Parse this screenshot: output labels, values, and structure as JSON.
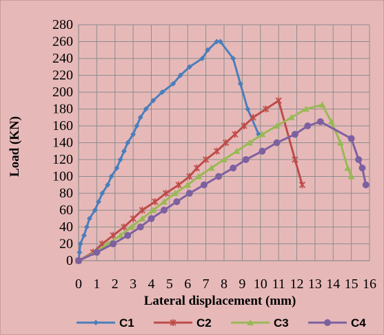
{
  "chart_data": {
    "type": "line",
    "title": "",
    "xlabel": "Lateral displacement (mm)",
    "ylabel": "Load (KN)",
    "xlim": [
      0,
      16
    ],
    "ylim": [
      0,
      280
    ],
    "x_ticks": [
      0,
      1,
      2,
      3,
      4,
      5,
      6,
      7,
      8,
      9,
      10,
      11,
      12,
      13,
      14,
      15,
      16
    ],
    "y_ticks": [
      0,
      20,
      40,
      60,
      80,
      100,
      120,
      140,
      160,
      180,
      200,
      220,
      240,
      260,
      280
    ],
    "grid": "vertical and horizontal major gridlines",
    "legend_position": "bottom",
    "series": [
      {
        "name": "C1",
        "color": "#4a7ebb",
        "marker": "diamond",
        "points": [
          [
            0,
            0
          ],
          [
            0.05,
            10
          ],
          [
            0.1,
            20
          ],
          [
            0.3,
            30
          ],
          [
            0.45,
            40
          ],
          [
            0.6,
            50
          ],
          [
            0.9,
            60
          ],
          [
            1.1,
            70
          ],
          [
            1.3,
            80
          ],
          [
            1.6,
            90
          ],
          [
            1.8,
            100
          ],
          [
            2.1,
            110
          ],
          [
            2.3,
            120
          ],
          [
            2.5,
            130
          ],
          [
            2.7,
            140
          ],
          [
            3.0,
            150
          ],
          [
            3.2,
            160
          ],
          [
            3.4,
            170
          ],
          [
            3.7,
            180
          ],
          [
            4.1,
            190
          ],
          [
            4.6,
            200
          ],
          [
            5.2,
            210
          ],
          [
            5.6,
            220
          ],
          [
            6.1,
            230
          ],
          [
            6.8,
            240
          ],
          [
            7.1,
            250
          ],
          [
            7.6,
            260
          ],
          [
            7.8,
            260
          ],
          [
            8.5,
            240
          ],
          [
            8.9,
            210
          ],
          [
            9.3,
            180
          ],
          [
            9.9,
            150
          ]
        ]
      },
      {
        "name": "C2",
        "color": "#be4b48",
        "marker": "star",
        "points": [
          [
            0,
            0
          ],
          [
            0.8,
            10
          ],
          [
            1.3,
            20
          ],
          [
            1.9,
            30
          ],
          [
            2.5,
            40
          ],
          [
            3.0,
            50
          ],
          [
            3.5,
            60
          ],
          [
            4.2,
            70
          ],
          [
            4.8,
            80
          ],
          [
            5.5,
            90
          ],
          [
            6.1,
            100
          ],
          [
            6.5,
            110
          ],
          [
            7.0,
            120
          ],
          [
            7.6,
            130
          ],
          [
            8.1,
            140
          ],
          [
            8.6,
            150
          ],
          [
            9.1,
            160
          ],
          [
            9.6,
            170
          ],
          [
            10.3,
            180
          ],
          [
            11.0,
            190
          ],
          [
            11.9,
            120
          ],
          [
            12.3,
            90
          ]
        ]
      },
      {
        "name": "C3",
        "color": "#98b954",
        "marker": "triangle",
        "points": [
          [
            0,
            0
          ],
          [
            0.9,
            10
          ],
          [
            1.6,
            20
          ],
          [
            2.3,
            30
          ],
          [
            2.9,
            40
          ],
          [
            3.5,
            50
          ],
          [
            4.1,
            60
          ],
          [
            4.7,
            70
          ],
          [
            5.3,
            80
          ],
          [
            6.0,
            90
          ],
          [
            6.6,
            100
          ],
          [
            7.3,
            110
          ],
          [
            8.0,
            120
          ],
          [
            8.7,
            130
          ],
          [
            9.4,
            140
          ],
          [
            10.1,
            150
          ],
          [
            10.9,
            160
          ],
          [
            11.7,
            170
          ],
          [
            12.5,
            180
          ],
          [
            13.4,
            185
          ],
          [
            13.9,
            165
          ],
          [
            14.4,
            140
          ],
          [
            14.8,
            110
          ],
          [
            15.0,
            100
          ]
        ]
      },
      {
        "name": "C4",
        "color": "#7d60a0",
        "marker": "circle",
        "points": [
          [
            0,
            0
          ],
          [
            1.0,
            10
          ],
          [
            1.9,
            20
          ],
          [
            2.7,
            30
          ],
          [
            3.4,
            40
          ],
          [
            4.0,
            50
          ],
          [
            4.7,
            60
          ],
          [
            5.4,
            70
          ],
          [
            6.1,
            80
          ],
          [
            6.9,
            90
          ],
          [
            7.7,
            100
          ],
          [
            8.5,
            110
          ],
          [
            9.2,
            120
          ],
          [
            10.1,
            130
          ],
          [
            10.9,
            140
          ],
          [
            11.9,
            150
          ],
          [
            12.6,
            160
          ],
          [
            13.3,
            165
          ],
          [
            15.0,
            145
          ],
          [
            15.4,
            120
          ],
          [
            15.6,
            110
          ],
          [
            15.8,
            90
          ]
        ]
      }
    ]
  }
}
